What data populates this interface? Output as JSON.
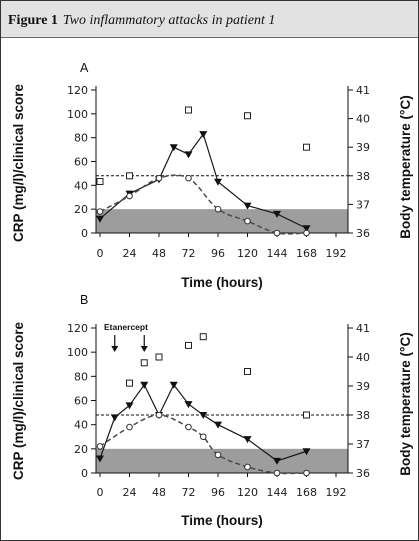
{
  "figure": {
    "label": "Figure 1",
    "caption": "Two inflammatory attacks in patient 1"
  },
  "colors": {
    "header_background": "#e2e2e2",
    "normal_range_band": "#9d9d9d",
    "solid_series": "#1a1a1a",
    "dashed_series": "#4a4a4a",
    "reference_line": "#111111"
  },
  "chart_data": [
    {
      "type": "line",
      "panel_label": "A",
      "xlabel": "Time (hours)",
      "ylabel": "CRP (mg/l)/clinical score",
      "y2label": "Body temperature (°C)",
      "xticks": [
        0,
        24,
        48,
        72,
        96,
        120,
        144,
        168,
        192
      ],
      "yticks": [
        0,
        20,
        40,
        60,
        80,
        100,
        120
      ],
      "y2ticks": [
        36,
        37,
        38,
        39,
        40,
        41
      ],
      "xlim": [
        0,
        192
      ],
      "ylim": [
        0,
        120
      ],
      "y2lim": [
        36,
        41
      ],
      "grid": false,
      "shaded_range_y": [
        0,
        20
      ],
      "reference_line_y2": 38,
      "annotations": [],
      "series": [
        {
          "axis": "y",
          "line": "solid",
          "marker": "triangle",
          "x": [
            0,
            24,
            48,
            60,
            72,
            84,
            96,
            120,
            144,
            168
          ],
          "y": [
            12,
            33,
            45,
            72,
            66,
            83,
            43,
            23,
            16,
            4
          ]
        },
        {
          "axis": "y",
          "line": "dashed",
          "marker": "circle",
          "x": [
            0,
            24,
            48,
            72,
            96,
            120,
            144,
            168
          ],
          "y": [
            18,
            31,
            46,
            46,
            20,
            10,
            0,
            0
          ]
        },
        {
          "axis": "y2",
          "line": "none",
          "marker": "square",
          "x": [
            0,
            24,
            72,
            120,
            168
          ],
          "y": [
            37.8,
            38.0,
            40.3,
            40.1,
            39.0
          ]
        }
      ]
    },
    {
      "type": "line",
      "panel_label": "B",
      "xlabel": "Time (hours)",
      "ylabel": "CRP (mg/l)/clinical score",
      "y2label": "Body temperature (°C)",
      "xticks": [
        0,
        24,
        48,
        72,
        96,
        120,
        144,
        168,
        192
      ],
      "yticks": [
        0,
        20,
        40,
        60,
        80,
        100,
        120
      ],
      "y2ticks": [
        36,
        37,
        38,
        39,
        40,
        41
      ],
      "xlim": [
        0,
        192
      ],
      "ylim": [
        0,
        120
      ],
      "y2lim": [
        36,
        41
      ],
      "grid": false,
      "shaded_range_y": [
        0,
        20
      ],
      "reference_line_y2": 38,
      "annotations": [
        {
          "text": "Etanercept",
          "arrow_x": [
            12,
            36
          ]
        }
      ],
      "series": [
        {
          "axis": "y",
          "line": "solid",
          "marker": "triangle",
          "x": [
            0,
            12,
            24,
            36,
            48,
            60,
            72,
            84,
            96,
            120,
            144,
            168
          ],
          "y": [
            12,
            46,
            56,
            73,
            48,
            73,
            57,
            48,
            40,
            28,
            10,
            18
          ]
        },
        {
          "axis": "y",
          "line": "dashed",
          "marker": "circle",
          "x": [
            0,
            24,
            48,
            72,
            84,
            96,
            120,
            144,
            168
          ],
          "y": [
            22,
            38,
            48,
            38,
            30,
            15,
            5,
            0,
            0
          ]
        },
        {
          "axis": "y2",
          "line": "none",
          "marker": "square",
          "x": [
            24,
            36,
            48,
            72,
            84,
            120,
            168
          ],
          "y": [
            39.1,
            39.8,
            40.0,
            40.4,
            40.7,
            39.5,
            38.0
          ]
        }
      ]
    }
  ]
}
